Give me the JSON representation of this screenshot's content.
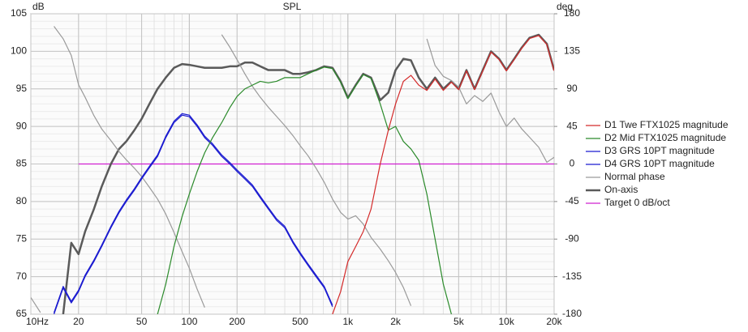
{
  "chart_data": {
    "type": "line",
    "title": "SPL",
    "ylabel": "dB",
    "y2label": "deg",
    "xscale": "log",
    "grid": true,
    "legend": "right",
    "xlim": [
      10,
      20000
    ],
    "xticks": [
      {
        "value": 10,
        "label": "10Hz"
      },
      20,
      50,
      100,
      200,
      500,
      {
        "value": 1000,
        "label": "1k"
      },
      {
        "value": 2000,
        "label": "2k"
      },
      {
        "value": 5000,
        "label": "5k"
      },
      {
        "value": 10000,
        "label": "10k"
      },
      {
        "value": 20000,
        "label": "20k"
      }
    ],
    "ylim": [
      65,
      105
    ],
    "yticks": [
      65,
      70,
      75,
      80,
      85,
      90,
      95,
      100,
      105
    ],
    "y2lim": [
      -180,
      180
    ],
    "y2ticks": [
      -180,
      -135,
      -90,
      -45,
      0,
      45,
      90,
      135,
      180
    ],
    "x": [
      10,
      11.5,
      12.5,
      14,
      16,
      18,
      20,
      22,
      25,
      28,
      32,
      36,
      40,
      45,
      50,
      56,
      63,
      71,
      80,
      90,
      100,
      112,
      125,
      140,
      160,
      180,
      200,
      224,
      250,
      280,
      315,
      355,
      400,
      450,
      500,
      560,
      630,
      710,
      800,
      900,
      1000,
      1120,
      1250,
      1400,
      1600,
      1800,
      2000,
      2240,
      2500,
      2800,
      3150,
      3550,
      4000,
      4500,
      5000,
      5600,
      6300,
      7100,
      8000,
      9000,
      10000,
      11200,
      12500,
      14000,
      16000,
      18000,
      20000
    ],
    "series": [
      {
        "name": "D1 Twe FTX1025 magnitude",
        "color": "#d42a2a",
        "line_width": 1.2,
        "values": [
          null,
          null,
          null,
          null,
          null,
          null,
          null,
          null,
          null,
          null,
          null,
          null,
          null,
          null,
          null,
          null,
          null,
          null,
          null,
          null,
          null,
          null,
          null,
          null,
          null,
          null,
          null,
          null,
          null,
          null,
          null,
          null,
          null,
          null,
          null,
          null,
          null,
          null,
          65,
          68,
          72,
          74,
          76,
          79,
          85,
          89.5,
          93,
          96,
          96.8,
          95.5,
          94.8,
          96.3,
          94.8,
          95.9,
          94.9,
          97.4,
          94.9,
          97.4,
          99.9,
          98.9,
          97.4,
          98.9,
          100.4,
          101.7,
          102.1,
          100.9,
          97.4
        ]
      },
      {
        "name": "D2 Mid FTX1025 magnitude",
        "color": "#2a8a2a",
        "line_width": 1.2,
        "values": [
          null,
          null,
          null,
          null,
          null,
          null,
          null,
          null,
          null,
          null,
          null,
          null,
          null,
          null,
          null,
          null,
          65,
          69,
          74,
          78,
          81,
          84,
          86.5,
          88.5,
          90.5,
          92.5,
          94,
          95,
          95.5,
          96,
          95.8,
          96,
          96.5,
          96.5,
          96.5,
          97,
          97.5,
          97.9,
          97.7,
          95.9,
          93.7,
          95.4,
          96.9,
          96.4,
          93,
          89.5,
          90,
          88,
          87,
          85.5,
          81,
          75,
          69,
          65,
          null,
          null,
          null,
          null,
          null,
          null,
          null,
          null,
          null,
          null,
          null,
          null,
          null
        ]
      },
      {
        "name": "D3 GRS 10PT magnitude",
        "color": "#1a1ad0",
        "line_width": 1.2,
        "values": [
          null,
          null,
          null,
          65,
          68.5,
          66.5,
          68,
          70,
          72,
          74,
          76.5,
          78.5,
          80,
          81.5,
          83,
          84.5,
          86,
          88.5,
          90.5,
          91.5,
          91.3,
          90,
          88.5,
          87.5,
          86,
          85,
          84,
          83,
          82,
          80.5,
          79,
          77.5,
          76.5,
          74.5,
          73,
          71.5,
          70,
          68.5,
          66,
          null,
          null,
          null,
          null,
          null,
          null,
          null,
          null,
          null,
          null,
          null,
          null,
          null,
          null,
          null,
          null,
          null,
          null,
          null,
          null,
          null,
          null,
          null,
          null,
          null,
          null,
          null,
          null
        ]
      },
      {
        "name": "D4 GRS 10PT magnitude",
        "color": "#1a1ad0",
        "line_width": 1.2,
        "values": [
          null,
          null,
          null,
          65.2,
          68.7,
          66.7,
          68.2,
          70.2,
          72.2,
          74.2,
          76.7,
          78.7,
          80.2,
          81.7,
          83.2,
          84.7,
          86.2,
          88.7,
          90.7,
          91.7,
          91.5,
          90.2,
          88.7,
          87.7,
          86.2,
          85.2,
          84.2,
          83.2,
          82.2,
          80.7,
          79.2,
          77.7,
          76.7,
          74.7,
          73.2,
          71.7,
          70.2,
          68.7,
          66.2,
          null,
          null,
          null,
          null,
          null,
          null,
          null,
          null,
          null,
          null,
          null,
          null,
          null,
          null,
          null,
          null,
          null,
          null,
          null,
          null,
          null,
          null,
          null,
          null,
          null,
          null,
          null,
          null
        ]
      },
      {
        "name": "Normal phase",
        "color": "#9a9a9a",
        "line_width": 1.2,
        "axis": "y2",
        "values": [
          -160,
          -178,
          null,
          165,
          150,
          130,
          95,
          80,
          58,
          42,
          28,
          15,
          5,
          -5,
          -15,
          -28,
          -42,
          -60,
          -82,
          -105,
          -125,
          -150,
          -172,
          null,
          155,
          140,
          125,
          108,
          93,
          80,
          68,
          57,
          46,
          34,
          22,
          10,
          -5,
          -22,
          -42,
          -58,
          -66,
          -62,
          -72,
          -88,
          -102,
          -116,
          -130,
          -148,
          -170,
          null,
          150,
          118,
          105,
          100,
          92,
          72,
          82,
          75,
          85,
          62,
          45,
          55,
          42,
          32,
          20,
          2,
          8
        ]
      },
      {
        "name": "On-axis",
        "color": "#5a5a5a",
        "line_width": 2.5,
        "values": [
          null,
          null,
          null,
          null,
          65,
          74.5,
          73,
          76,
          79,
          82,
          85,
          87,
          88,
          89.5,
          91,
          93,
          95,
          96.5,
          97.8,
          98.3,
          98.2,
          98,
          97.8,
          97.8,
          97.8,
          98,
          98,
          98.5,
          98.5,
          98,
          97.5,
          97.5,
          97.5,
          97,
          97,
          97.2,
          97.5,
          98,
          97.8,
          96,
          93.8,
          95.5,
          97,
          96.5,
          93.5,
          94.5,
          97.5,
          99,
          98.8,
          96.5,
          95,
          96.5,
          95,
          96,
          95,
          97.5,
          95,
          97.5,
          100,
          99,
          97.5,
          99,
          100.5,
          101.8,
          102.2,
          101,
          97.5
        ]
      },
      {
        "name": "Target 0 dB/oct",
        "color": "#d020d0",
        "line_width": 1.2,
        "x": [
          20,
          20000
        ],
        "values": [
          85,
          85
        ]
      }
    ]
  }
}
